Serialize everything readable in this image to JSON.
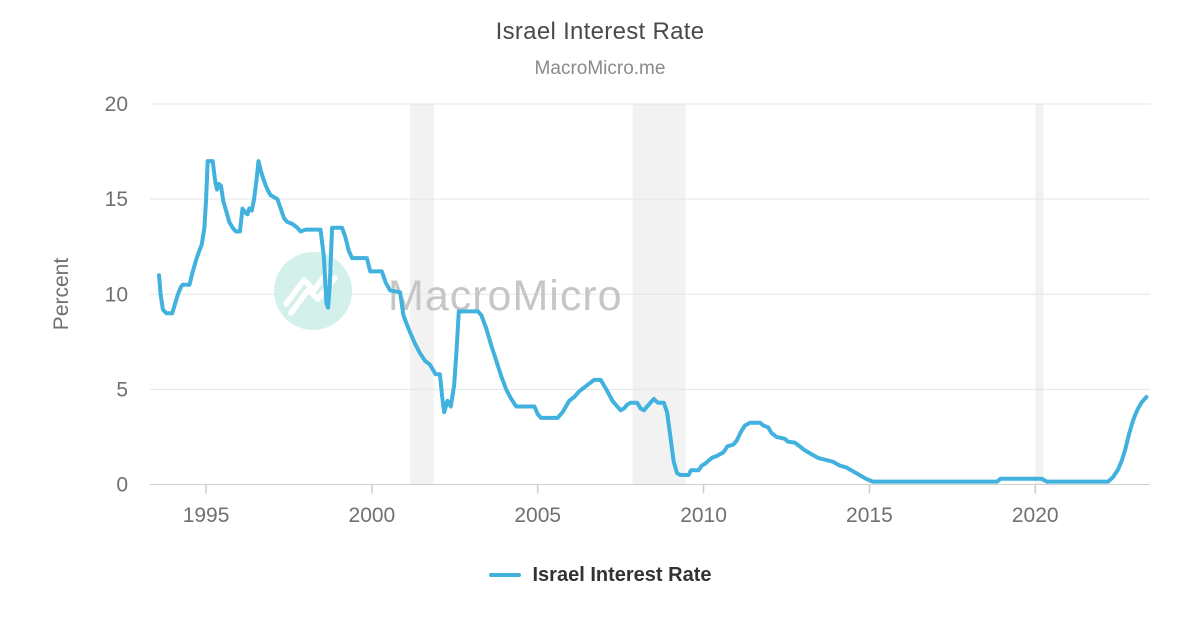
{
  "header": {
    "title": "Israel Interest Rate",
    "subtitle": "MacroMicro.me"
  },
  "watermark": {
    "brand": "MacroMicro",
    "logo": "macromicro-mountain-logo"
  },
  "legend": {
    "items": [
      {
        "label": "Israel Interest Rate",
        "color": "#41b1de"
      }
    ]
  },
  "appearance": {
    "series_color": "#41b1de",
    "grid_color": "#e6e6e6",
    "axis_line_color": "#d0d0d0",
    "band_color": "#f2f2f2",
    "tick_mark_color": "#cccccc",
    "tick_label_color": "#707070",
    "title_color": "#4a4a4a",
    "subtitle_color": "#8a8a8a",
    "legend_text_color": "#333333",
    "watermark_circle_color": "#cbeee6",
    "watermark_text_color": "#c6c6c6",
    "background": "#ffffff"
  },
  "chart_data": {
    "type": "line",
    "title": "Israel Interest Rate",
    "subtitle": "MacroMicro.me",
    "xlabel": "",
    "ylabel": "Percent",
    "xlim": [
      1993.31,
      2023.46
    ],
    "ylim": [
      0,
      20
    ],
    "x_ticks": [
      1995,
      2000,
      2005,
      2010,
      2015,
      2020
    ],
    "y_ticks": [
      0,
      5,
      10,
      15,
      20
    ],
    "grid": "horizontal",
    "legend_position": "bottom",
    "recession_bands": [
      [
        2001.15,
        2001.87
      ],
      [
        2007.86,
        2009.46
      ],
      [
        2020.0,
        2020.25
      ]
    ],
    "series": [
      {
        "name": "Israel Interest Rate",
        "color": "#41b1de",
        "points": [
          [
            1993.58,
            11.0
          ],
          [
            1993.63,
            10.0
          ],
          [
            1993.7,
            9.2
          ],
          [
            1993.8,
            9.0
          ],
          [
            1993.98,
            9.0
          ],
          [
            1994.05,
            9.4
          ],
          [
            1994.15,
            10.0
          ],
          [
            1994.25,
            10.4
          ],
          [
            1994.3,
            10.5
          ],
          [
            1994.5,
            10.5
          ],
          [
            1994.6,
            11.2
          ],
          [
            1994.7,
            11.8
          ],
          [
            1994.8,
            12.3
          ],
          [
            1994.87,
            12.6
          ],
          [
            1994.95,
            13.5
          ],
          [
            1995.0,
            15.0
          ],
          [
            1995.05,
            17.0
          ],
          [
            1995.2,
            17.0
          ],
          [
            1995.28,
            15.9
          ],
          [
            1995.33,
            15.5
          ],
          [
            1995.38,
            15.8
          ],
          [
            1995.45,
            15.7
          ],
          [
            1995.52,
            14.9
          ],
          [
            1995.6,
            14.4
          ],
          [
            1995.7,
            13.8
          ],
          [
            1995.8,
            13.5
          ],
          [
            1995.9,
            13.3
          ],
          [
            1996.02,
            13.3
          ],
          [
            1996.1,
            14.5
          ],
          [
            1996.18,
            14.3
          ],
          [
            1996.25,
            14.2
          ],
          [
            1996.3,
            14.5
          ],
          [
            1996.38,
            14.4
          ],
          [
            1996.45,
            15.0
          ],
          [
            1996.52,
            16.0
          ],
          [
            1996.58,
            17.0
          ],
          [
            1996.65,
            16.5
          ],
          [
            1996.72,
            16.1
          ],
          [
            1996.8,
            15.7
          ],
          [
            1996.88,
            15.4
          ],
          [
            1996.95,
            15.2
          ],
          [
            1997.15,
            15.0
          ],
          [
            1997.25,
            14.5
          ],
          [
            1997.35,
            14.0
          ],
          [
            1997.45,
            13.8
          ],
          [
            1997.6,
            13.7
          ],
          [
            1997.75,
            13.5
          ],
          [
            1997.85,
            13.3
          ],
          [
            1998.0,
            13.4
          ],
          [
            1998.45,
            13.4
          ],
          [
            1998.55,
            12.0
          ],
          [
            1998.63,
            9.5
          ],
          [
            1998.68,
            9.3
          ],
          [
            1998.73,
            10.5
          ],
          [
            1998.8,
            13.5
          ],
          [
            1999.1,
            13.5
          ],
          [
            1999.2,
            13.0
          ],
          [
            1999.3,
            12.3
          ],
          [
            1999.4,
            11.9
          ],
          [
            1999.85,
            11.9
          ],
          [
            1999.95,
            11.2
          ],
          [
            2000.3,
            11.2
          ],
          [
            2000.42,
            10.6
          ],
          [
            2000.55,
            10.2
          ],
          [
            2000.85,
            10.1
          ],
          [
            2000.95,
            8.9
          ],
          [
            2001.1,
            8.2
          ],
          [
            2001.3,
            7.4
          ],
          [
            2001.45,
            6.9
          ],
          [
            2001.6,
            6.5
          ],
          [
            2001.75,
            6.3
          ],
          [
            2001.92,
            5.8
          ],
          [
            2002.05,
            5.8
          ],
          [
            2002.12,
            4.6
          ],
          [
            2002.18,
            3.8
          ],
          [
            2002.28,
            4.4
          ],
          [
            2002.38,
            4.1
          ],
          [
            2002.48,
            5.2
          ],
          [
            2002.55,
            7.0
          ],
          [
            2002.62,
            9.1
          ],
          [
            2003.2,
            9.1
          ],
          [
            2003.3,
            8.9
          ],
          [
            2003.45,
            8.2
          ],
          [
            2003.6,
            7.3
          ],
          [
            2003.75,
            6.5
          ],
          [
            2003.9,
            5.7
          ],
          [
            2004.05,
            5.0
          ],
          [
            2004.2,
            4.5
          ],
          [
            2004.35,
            4.1
          ],
          [
            2004.9,
            4.1
          ],
          [
            2005.0,
            3.7
          ],
          [
            2005.1,
            3.5
          ],
          [
            2005.6,
            3.5
          ],
          [
            2005.75,
            3.8
          ],
          [
            2005.85,
            4.1
          ],
          [
            2005.95,
            4.4
          ],
          [
            2006.1,
            4.6
          ],
          [
            2006.25,
            4.9
          ],
          [
            2006.4,
            5.1
          ],
          [
            2006.55,
            5.3
          ],
          [
            2006.7,
            5.5
          ],
          [
            2006.9,
            5.5
          ],
          [
            2007.0,
            5.2
          ],
          [
            2007.1,
            4.9
          ],
          [
            2007.25,
            4.4
          ],
          [
            2007.4,
            4.1
          ],
          [
            2007.5,
            3.9
          ],
          [
            2007.6,
            4.0
          ],
          [
            2007.7,
            4.2
          ],
          [
            2007.8,
            4.3
          ],
          [
            2008.0,
            4.3
          ],
          [
            2008.1,
            4.0
          ],
          [
            2008.2,
            3.9
          ],
          [
            2008.35,
            4.2
          ],
          [
            2008.5,
            4.5
          ],
          [
            2008.62,
            4.3
          ],
          [
            2008.8,
            4.3
          ],
          [
            2008.9,
            3.8
          ],
          [
            2009.0,
            2.5
          ],
          [
            2009.1,
            1.2
          ],
          [
            2009.2,
            0.6
          ],
          [
            2009.3,
            0.5
          ],
          [
            2009.55,
            0.5
          ],
          [
            2009.62,
            0.75
          ],
          [
            2009.85,
            0.75
          ],
          [
            2009.95,
            1.0
          ],
          [
            2010.05,
            1.1
          ],
          [
            2010.25,
            1.4
          ],
          [
            2010.4,
            1.5
          ],
          [
            2010.6,
            1.7
          ],
          [
            2010.72,
            2.0
          ],
          [
            2010.9,
            2.1
          ],
          [
            2011.0,
            2.3
          ],
          [
            2011.12,
            2.75
          ],
          [
            2011.25,
            3.1
          ],
          [
            2011.4,
            3.25
          ],
          [
            2011.7,
            3.25
          ],
          [
            2011.8,
            3.1
          ],
          [
            2011.95,
            3.0
          ],
          [
            2012.05,
            2.7
          ],
          [
            2012.2,
            2.5
          ],
          [
            2012.45,
            2.4
          ],
          [
            2012.55,
            2.25
          ],
          [
            2012.75,
            2.2
          ],
          [
            2012.9,
            2.0
          ],
          [
            2013.05,
            1.8
          ],
          [
            2013.25,
            1.6
          ],
          [
            2013.45,
            1.4
          ],
          [
            2013.9,
            1.2
          ],
          [
            2014.1,
            1.0
          ],
          [
            2014.3,
            0.9
          ],
          [
            2014.5,
            0.7
          ],
          [
            2014.7,
            0.5
          ],
          [
            2014.9,
            0.3
          ],
          [
            2015.1,
            0.15
          ],
          [
            2018.85,
            0.15
          ],
          [
            2018.95,
            0.3
          ],
          [
            2020.2,
            0.3
          ],
          [
            2020.35,
            0.15
          ],
          [
            2022.2,
            0.15
          ],
          [
            2022.35,
            0.4
          ],
          [
            2022.5,
            0.8
          ],
          [
            2022.62,
            1.3
          ],
          [
            2022.72,
            1.9
          ],
          [
            2022.82,
            2.6
          ],
          [
            2022.92,
            3.2
          ],
          [
            2023.0,
            3.6
          ],
          [
            2023.1,
            4.0
          ],
          [
            2023.2,
            4.3
          ],
          [
            2023.3,
            4.5
          ],
          [
            2023.35,
            4.6
          ]
        ]
      }
    ]
  }
}
